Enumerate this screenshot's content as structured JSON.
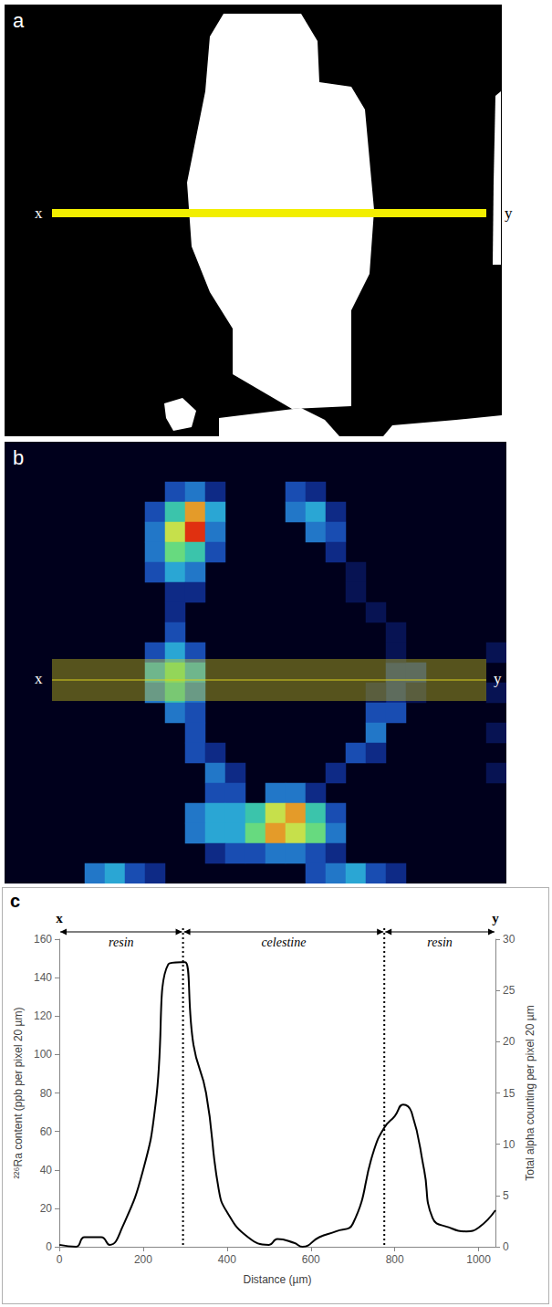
{
  "panels": {
    "a": {
      "label": "a",
      "start": "x",
      "end": "y",
      "line_color": "#f2ee00"
    }
  },
  "chart_data": [
    {
      "type": "heatmap",
      "panel": "b",
      "start": "x",
      "end": "y",
      "band_color": "#d8d020",
      "columns": 25,
      "rows": 22,
      "color_range": [
        0,
        10
      ],
      "cells": [
        [
          8,
          2,
          3
        ],
        [
          9,
          2,
          4
        ],
        [
          10,
          2,
          2
        ],
        [
          7,
          3,
          3
        ],
        [
          8,
          3,
          6
        ],
        [
          9,
          3,
          9
        ],
        [
          10,
          3,
          5
        ],
        [
          7,
          4,
          4
        ],
        [
          8,
          4,
          8
        ],
        [
          9,
          4,
          10
        ],
        [
          10,
          4,
          4
        ],
        [
          7,
          5,
          4
        ],
        [
          8,
          5,
          7
        ],
        [
          9,
          5,
          6
        ],
        [
          10,
          5,
          3
        ],
        [
          7,
          6,
          3
        ],
        [
          8,
          6,
          5
        ],
        [
          9,
          6,
          4
        ],
        [
          8,
          7,
          2
        ],
        [
          9,
          7,
          2
        ],
        [
          14,
          2,
          3
        ],
        [
          15,
          2,
          2
        ],
        [
          14,
          3,
          4
        ],
        [
          15,
          3,
          5
        ],
        [
          16,
          3,
          2
        ],
        [
          15,
          4,
          4
        ],
        [
          16,
          4,
          3
        ],
        [
          16,
          5,
          2
        ],
        [
          8,
          8,
          2
        ],
        [
          8,
          9,
          3
        ],
        [
          7,
          10,
          3
        ],
        [
          8,
          10,
          5
        ],
        [
          9,
          10,
          3
        ],
        [
          7,
          11,
          5
        ],
        [
          8,
          11,
          7
        ],
        [
          9,
          11,
          5
        ],
        [
          7,
          12,
          4
        ],
        [
          8,
          12,
          6
        ],
        [
          9,
          12,
          4
        ],
        [
          8,
          13,
          4
        ],
        [
          9,
          13,
          3
        ],
        [
          9,
          14,
          3
        ],
        [
          19,
          11,
          2
        ],
        [
          20,
          11,
          2
        ],
        [
          19,
          12,
          2
        ],
        [
          18,
          12,
          1
        ],
        [
          20,
          12,
          1
        ],
        [
          18,
          13,
          3
        ],
        [
          19,
          13,
          3
        ],
        [
          18,
          14,
          4
        ],
        [
          17,
          15,
          3
        ],
        [
          18,
          15,
          2
        ],
        [
          16,
          16,
          2
        ],
        [
          17,
          6,
          1
        ],
        [
          17,
          7,
          1
        ],
        [
          18,
          8,
          1
        ],
        [
          19,
          9,
          1
        ],
        [
          19,
          10,
          1
        ],
        [
          9,
          15,
          3
        ],
        [
          10,
          15,
          2
        ],
        [
          10,
          16,
          4
        ],
        [
          11,
          16,
          2
        ],
        [
          10,
          17,
          3
        ],
        [
          11,
          17,
          3
        ],
        [
          13,
          17,
          4
        ],
        [
          14,
          17,
          4
        ],
        [
          15,
          17,
          2
        ],
        [
          9,
          18,
          4
        ],
        [
          10,
          18,
          5
        ],
        [
          11,
          18,
          5
        ],
        [
          12,
          18,
          6
        ],
        [
          13,
          18,
          8
        ],
        [
          14,
          18,
          9
        ],
        [
          15,
          18,
          6
        ],
        [
          16,
          18,
          3
        ],
        [
          9,
          19,
          4
        ],
        [
          10,
          19,
          5
        ],
        [
          11,
          19,
          5
        ],
        [
          12,
          19,
          7
        ],
        [
          13,
          19,
          9
        ],
        [
          14,
          19,
          8
        ],
        [
          15,
          19,
          7
        ],
        [
          16,
          19,
          4
        ],
        [
          10,
          20,
          2
        ],
        [
          11,
          20,
          3
        ],
        [
          12,
          20,
          3
        ],
        [
          13,
          20,
          4
        ],
        [
          14,
          20,
          4
        ],
        [
          15,
          20,
          3
        ],
        [
          16,
          20,
          2
        ],
        [
          4,
          21,
          4
        ],
        [
          5,
          21,
          5
        ],
        [
          6,
          21,
          3
        ],
        [
          7,
          21,
          2
        ],
        [
          15,
          21,
          3
        ],
        [
          16,
          21,
          4
        ],
        [
          17,
          21,
          5
        ],
        [
          18,
          21,
          3
        ],
        [
          19,
          21,
          2
        ],
        [
          24,
          10,
          1
        ],
        [
          24,
          12,
          1
        ],
        [
          24,
          14,
          1
        ],
        [
          24,
          16,
          1
        ]
      ]
    },
    {
      "type": "line",
      "panel": "c",
      "x_label": "Distance (µm)",
      "y_label": "²²⁶Ra content (ppb per pixel 20 µm)",
      "y2_label": "Total alpha counting per pixel 20 µm",
      "x": [
        0,
        40,
        60,
        100,
        120,
        150,
        200,
        230,
        260,
        290,
        300,
        320,
        350,
        380,
        400,
        450,
        500,
        520,
        560,
        580,
        620,
        660,
        700,
        750,
        775,
        800,
        820,
        840,
        870,
        890,
        930,
        970,
        1000,
        1040
      ],
      "series": [
        {
          "color": "#000000",
          "line_style": "solid",
          "axis": "y",
          "values": [
            1,
            0,
            5,
            5,
            1,
            10,
            40,
            75,
            147,
            148,
            148,
            105,
            80,
            30,
            18,
            5,
            1,
            4,
            2,
            0,
            5,
            8,
            12,
            50,
            62,
            68,
            74,
            70,
            40,
            15,
            10,
            8,
            10,
            19
          ]
        }
      ],
      "xlim": [
        0,
        1040
      ],
      "xticks": [
        0,
        200,
        400,
        600,
        800,
        1000
      ],
      "ylim": [
        0,
        160
      ],
      "yticks": [
        0,
        20,
        40,
        60,
        80,
        100,
        120,
        140,
        160
      ],
      "y2lim": [
        0,
        30
      ],
      "y2ticks": [
        0,
        5,
        10,
        15,
        20,
        25,
        30
      ],
      "grid": false,
      "regions": [
        {
          "label": "resin",
          "from": 0,
          "to": 295
        },
        {
          "label": "celestine",
          "from": 295,
          "to": 775
        },
        {
          "label": "resin",
          "from": 775,
          "to": 1040
        }
      ],
      "ends": {
        "start": "x",
        "end": "y"
      }
    }
  ]
}
